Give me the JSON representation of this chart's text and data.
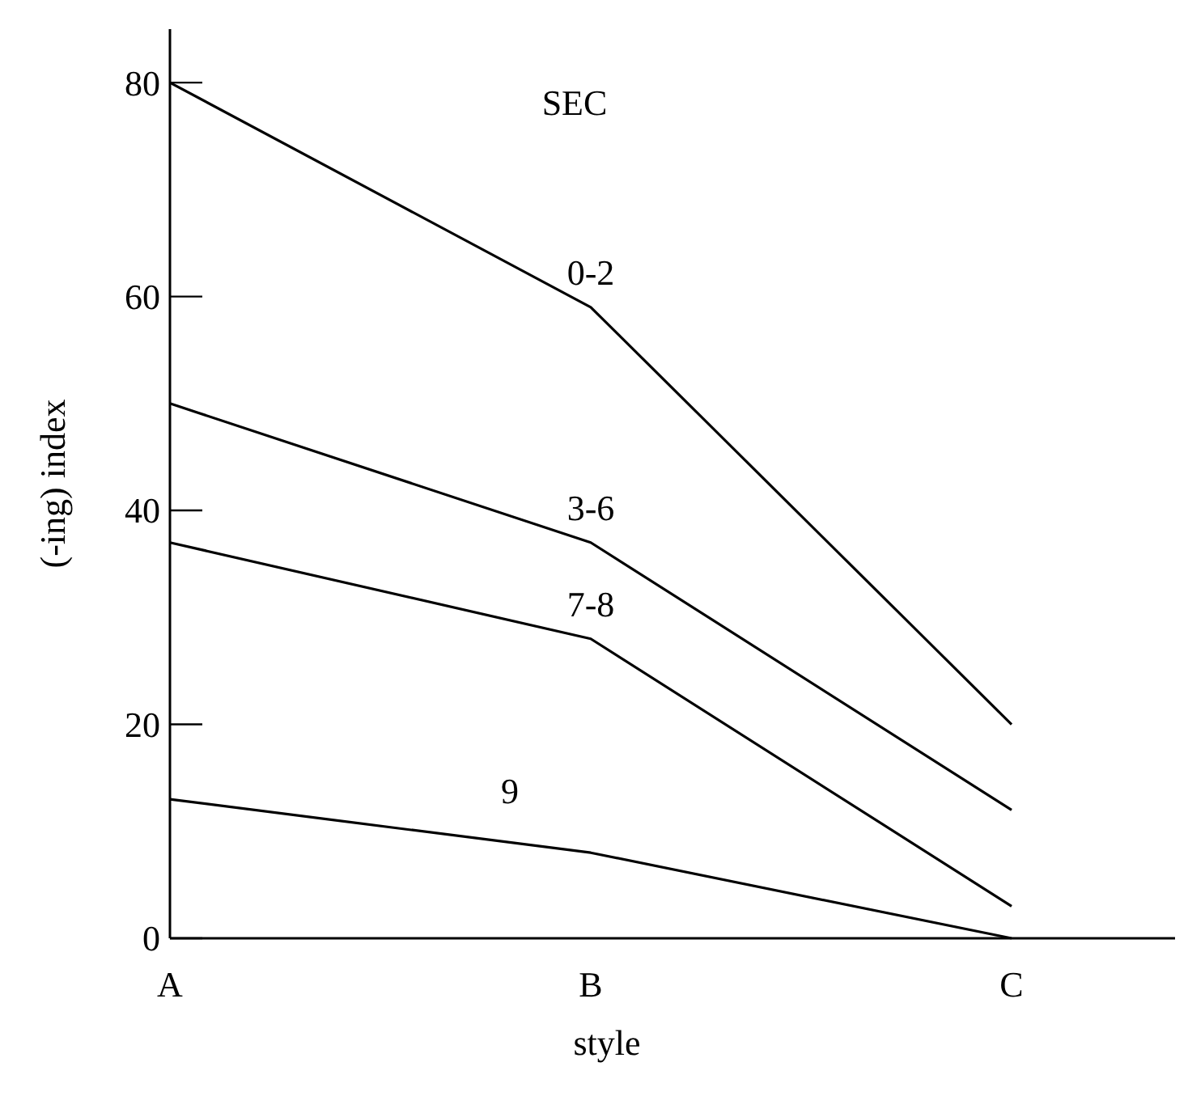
{
  "chart_data": {
    "type": "line",
    "legend_title": "SEC",
    "xlabel": "style",
    "ylabel": "(-ing) index",
    "categories": [
      "A",
      "B",
      "C"
    ],
    "series": [
      {
        "name": "0-2",
        "color": "#000000",
        "values": [
          80,
          59,
          20
        ]
      },
      {
        "name": "3-6",
        "color": "#000000",
        "values": [
          50,
          37,
          12
        ]
      },
      {
        "name": "7-8",
        "color": "#000000",
        "values": [
          37,
          28,
          3
        ]
      },
      {
        "name": "9",
        "color": "#000000",
        "values": [
          13,
          8,
          0
        ]
      }
    ],
    "ylim": [
      0,
      85
    ],
    "yticks": [
      0,
      20,
      40,
      60,
      80
    ],
    "grid": false,
    "marker": "none",
    "line_style": "solid"
  }
}
